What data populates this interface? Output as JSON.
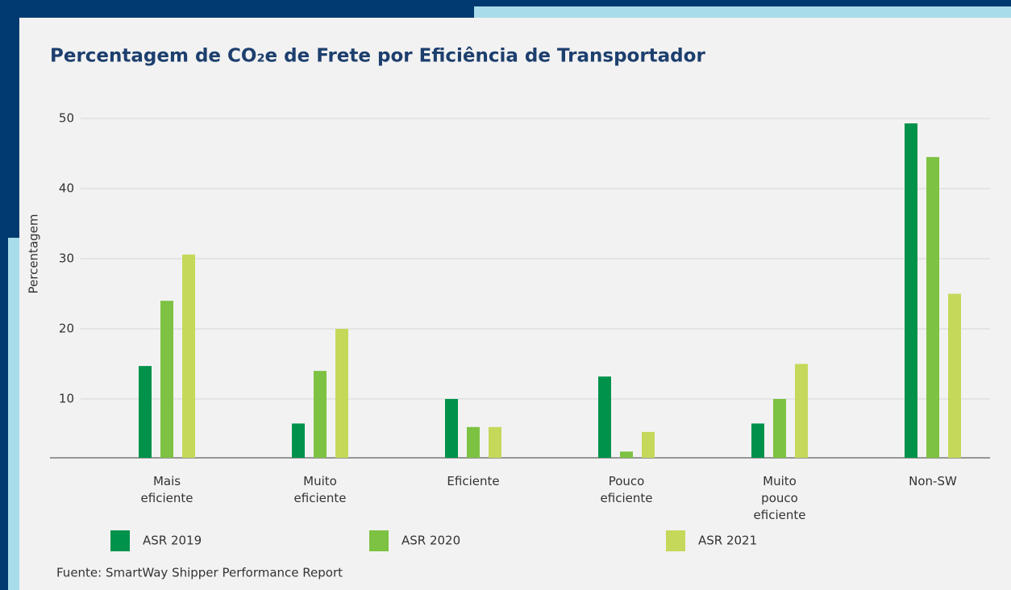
{
  "chart_data": {
    "type": "bar",
    "title": "Percentagem de CO₂e de Frete por Eficiência de Transportador",
    "y_label": "Percentagem",
    "categories": [
      "Mais eficiente",
      "Muito eficiente",
      "Eficiente",
      "Pouco eficiente",
      "Muito pouco eficiente",
      "Non-SW"
    ],
    "series": [
      {
        "name": "ASR 2019",
        "color": "#00924a",
        "values": [
          14.7,
          6.5,
          10,
          13.2,
          6.5,
          49.3
        ]
      },
      {
        "name": "ASR 2020",
        "color": "#7dc242",
        "values": [
          24,
          14,
          6,
          2.5,
          10,
          44.5
        ]
      },
      {
        "name": "ASR 2021",
        "color": "#c6d85a",
        "values": [
          30.6,
          20,
          6,
          5.3,
          15,
          25
        ]
      }
    ],
    "ylim": [
      0,
      50
    ],
    "yticks": [
      10,
      20,
      30,
      40,
      50
    ],
    "grid": true,
    "source": "Fuente: SmartWay Shipper Performance Report"
  }
}
